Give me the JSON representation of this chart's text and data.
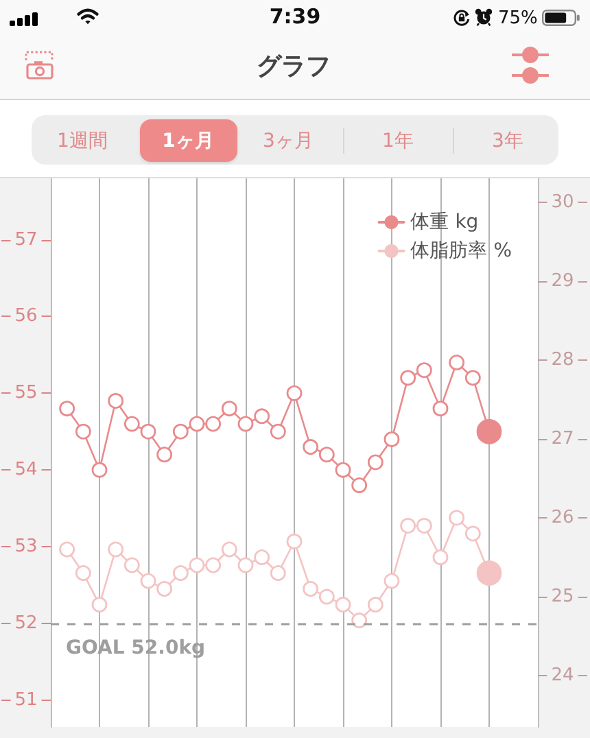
{
  "chart_data": {
    "type": "line",
    "title": "グラフ",
    "categories": [
      null,
      null,
      null,
      null,
      null,
      null,
      null,
      null,
      null,
      null,
      null,
      null,
      null,
      null,
      null,
      null,
      null,
      null,
      null,
      null,
      null,
      null,
      null,
      null,
      null,
      null,
      null,
      null,
      null,
      null,
      null
    ],
    "series": [
      {
        "name": "体重 kg",
        "color": "#e98a8c",
        "values": [
          null,
          54.8,
          54.5,
          54.0,
          54.9,
          54.6,
          54.5,
          54.2,
          54.5,
          54.6,
          54.6,
          54.8,
          54.6,
          54.7,
          54.5,
          55.0,
          54.3,
          54.2,
          54.0,
          53.8,
          54.1,
          54.4,
          55.2,
          55.3,
          54.8,
          55.4,
          55.2,
          54.5,
          null,
          null,
          null
        ]
      },
      {
        "name": "体脂肪率 %",
        "color": "#f4c3c3",
        "axis": "y2",
        "values": [
          null,
          25.6,
          25.3,
          24.9,
          25.6,
          25.4,
          25.2,
          25.1,
          25.3,
          25.4,
          25.4,
          25.6,
          25.4,
          25.5,
          25.3,
          25.7,
          25.1,
          25.0,
          24.9,
          24.7,
          24.9,
          25.2,
          25.9,
          25.9,
          25.5,
          26.0,
          25.8,
          25.3,
          null,
          null,
          null
        ]
      }
    ],
    "ylim": [
      50.65,
      57.8
    ],
    "yticks": [
      51,
      52,
      53,
      54,
      55,
      56,
      57
    ],
    "y2lim": [
      23.35,
      30.3
    ],
    "y2ticks": [
      24,
      25,
      26,
      27,
      28,
      29,
      30
    ],
    "ref_lines": [
      {
        "axis": "y",
        "value": 52,
        "label": "GOAL 52.0kg",
        "color": "#9e9e9e",
        "line_style": "dashed"
      }
    ],
    "annotations": [
      "7:39",
      "75%",
      "1週間",
      "1ヶ月",
      "3ヶ月",
      "1年",
      "3年"
    ],
    "grid": "x",
    "legend": "top right",
    "marker": "circle",
    "line_style": "solid"
  }
}
